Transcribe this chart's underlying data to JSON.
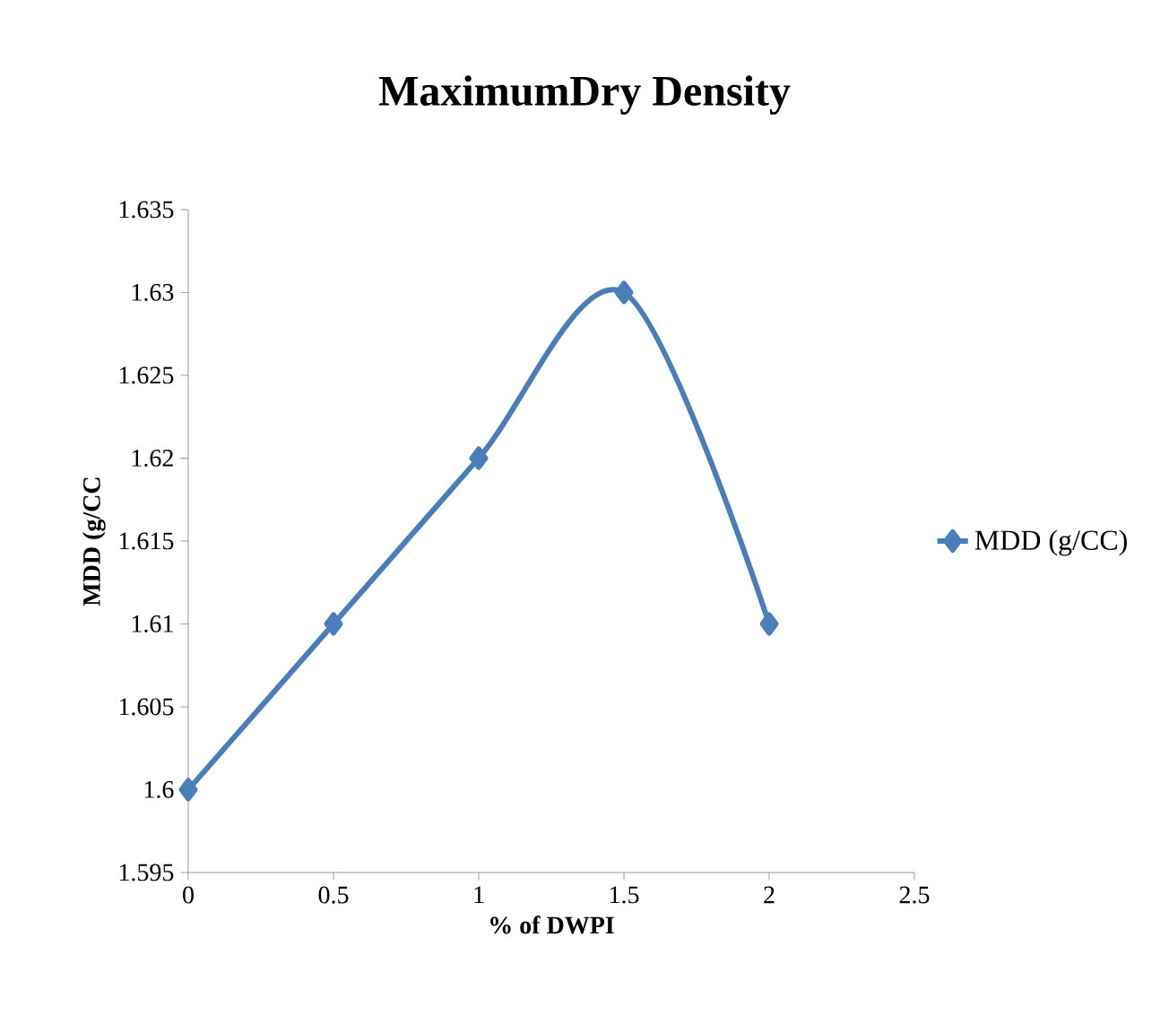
{
  "chart_data": {
    "type": "line",
    "title": "MaximumDry Density",
    "xlabel": "% of DWPI",
    "ylabel": "MDD  (g/CC",
    "x": [
      0,
      0.5,
      1,
      1.5,
      2
    ],
    "series": [
      {
        "name": "MDD (g/CC)",
        "color": "#4a7ebb",
        "values": [
          1.6,
          1.61,
          1.62,
          1.63,
          1.61
        ]
      }
    ],
    "xlim": [
      0,
      2.5
    ],
    "xticks": [
      0,
      0.5,
      1,
      1.5,
      2,
      2.5
    ],
    "ylim": [
      1.595,
      1.635
    ],
    "yticks": [
      1.595,
      1.6,
      1.605,
      1.61,
      1.615,
      1.62,
      1.625,
      1.63,
      1.635
    ],
    "grid": false,
    "legend": "right",
    "marker": "diamond",
    "line_style": "solid"
  }
}
